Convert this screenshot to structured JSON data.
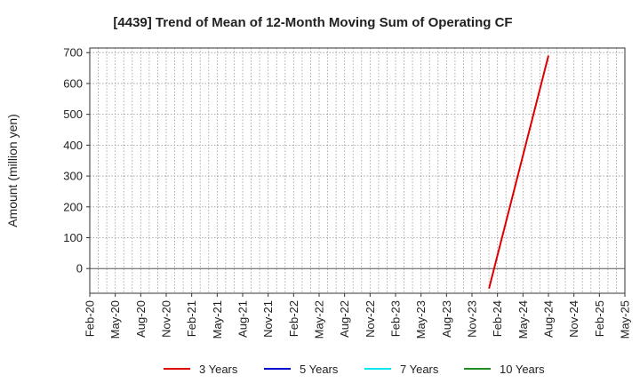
{
  "chart_data": {
    "type": "line",
    "title": "[4439]  Trend of Mean of 12-Month Moving Sum of Operating CF",
    "xlabel": "",
    "ylabel": "Amount (million yen)",
    "x_tick_labels": [
      "Feb-20",
      "May-20",
      "Aug-20",
      "Nov-20",
      "Feb-21",
      "May-21",
      "Aug-21",
      "Nov-21",
      "Feb-22",
      "May-22",
      "Aug-22",
      "Nov-22",
      "Feb-23",
      "May-23",
      "Aug-23",
      "Nov-23",
      "Feb-24",
      "May-24",
      "Aug-24",
      "Nov-24",
      "Feb-25",
      "May-25"
    ],
    "x_range": [
      "Feb-20",
      "May-25"
    ],
    "y_ticks": [
      0,
      100,
      200,
      300,
      400,
      500,
      600,
      700
    ],
    "ylim": [
      -80,
      715
    ],
    "grid": true,
    "legend_placement": "bottom",
    "series": [
      {
        "name": "3 Years",
        "color": "#dd0000",
        "points": [
          {
            "x": "Jan-24",
            "y": -65
          },
          {
            "x": "Aug-24",
            "y": 690
          }
        ]
      },
      {
        "name": "5 Years",
        "color": "#0000cc",
        "points": []
      },
      {
        "name": "7 Years",
        "color": "#00e5ee",
        "points": []
      },
      {
        "name": "10 Years",
        "color": "#228b22",
        "points": []
      }
    ]
  }
}
